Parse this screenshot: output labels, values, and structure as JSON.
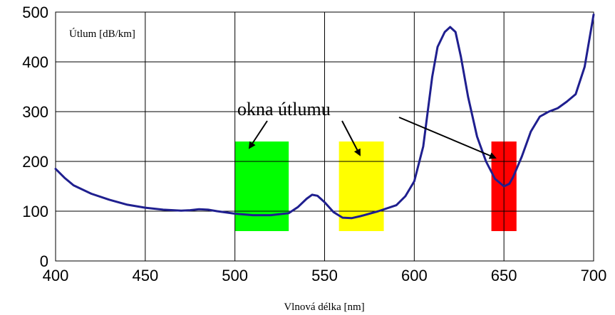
{
  "chart_data": {
    "type": "line",
    "title": "",
    "xlabel": "Vlnová délka [nm]",
    "ylabel": "Útlum [dB/km]",
    "xlim": [
      400,
      700
    ],
    "ylim": [
      0,
      500
    ],
    "x_ticks": [
      400,
      450,
      500,
      550,
      600,
      650,
      700
    ],
    "y_ticks": [
      0,
      100,
      200,
      300,
      400,
      500
    ],
    "grid": true,
    "line_color": "#1f1f8f",
    "series": [
      {
        "x": [
          400,
          405,
          410,
          420,
          430,
          440,
          450,
          460,
          470,
          475,
          480,
          485,
          490,
          500,
          510,
          520,
          530,
          535,
          540,
          543,
          546,
          550,
          555,
          560,
          565,
          570,
          580,
          590,
          595,
          600,
          605,
          610,
          613,
          617,
          620,
          623,
          626,
          630,
          635,
          640,
          645,
          650,
          653,
          655,
          660,
          665,
          670,
          675,
          680,
          685,
          690,
          695,
          700
        ],
        "y": [
          185,
          167,
          152,
          135,
          123,
          113,
          107,
          103,
          101,
          102,
          104,
          103,
          100,
          95,
          92,
          92,
          96,
          108,
          125,
          133,
          131,
          118,
          98,
          87,
          86,
          90,
          100,
          112,
          130,
          160,
          230,
          370,
          430,
          460,
          470,
          460,
          410,
          330,
          250,
          200,
          165,
          150,
          155,
          168,
          210,
          260,
          290,
          300,
          307,
          320,
          335,
          390,
          495
        ]
      }
    ],
    "highlight_bands": [
      {
        "x_start": 500,
        "x_end": 530,
        "y_start": 60,
        "y_end": 240,
        "color": "#00ff00"
      },
      {
        "x_start": 558,
        "x_end": 583,
        "y_start": 60,
        "y_end": 240,
        "color": "#ffff00"
      },
      {
        "x_start": 643,
        "x_end": 657,
        "y_start": 60,
        "y_end": 240,
        "color": "#ff0000"
      }
    ],
    "annotation": {
      "text": "okna útlumu"
    }
  }
}
